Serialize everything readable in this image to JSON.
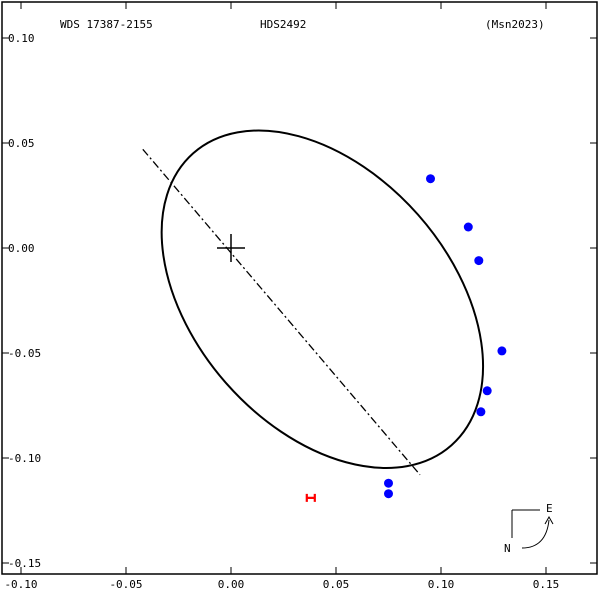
{
  "header": {
    "wds_id": "WDS 17387-2155",
    "discoverer": "HDS2492",
    "reference": "(Msn2023)"
  },
  "compass": {
    "east_label": "E",
    "north_label": "N"
  },
  "colors": {
    "axes": "#000000",
    "orbit": "#000000",
    "observations": "#0000ff",
    "hipparcos_marker": "#ff0000"
  },
  "chart_data": {
    "type": "scatter",
    "title": "",
    "xlabel": "",
    "ylabel": "",
    "xlim": [
      -0.105,
      0.175
    ],
    "ylim": [
      -0.162,
      0.113
    ],
    "x_ticks": [
      -0.1,
      -0.05,
      0.0,
      0.05,
      0.1,
      0.15
    ],
    "x_tick_labels": [
      "-0.10",
      "-0.05",
      "0.00",
      "0.05",
      "0.10",
      "0.15"
    ],
    "y_ticks": [
      0.1,
      0.05,
      0.0,
      -0.05,
      -0.1,
      -0.15
    ],
    "y_tick_labels": [
      "0.10",
      "0.05",
      "0.00",
      "-0.05",
      "-0.10",
      "-0.15"
    ],
    "grid": false,
    "primary_star": [
      0.0,
      0.0
    ],
    "orbit_ellipse": {
      "center": [
        0.0435,
        -0.0244
      ],
      "semi_axes": [
        0.0928,
        0.0608
      ],
      "rotation_deg": 48.5
    },
    "line_of_nodes": [
      [
        -0.042,
        0.047
      ],
      [
        0.09,
        -0.108
      ]
    ],
    "series": [
      {
        "marker": "filled-circle",
        "points": [
          [
            0.095,
            0.033
          ],
          [
            0.113,
            0.01
          ],
          [
            0.118,
            -0.006
          ],
          [
            0.129,
            -0.049
          ],
          [
            0.122,
            -0.068
          ],
          [
            0.119,
            -0.078
          ],
          [
            0.075,
            -0.112
          ],
          [
            0.075,
            -0.117
          ]
        ]
      },
      {
        "marker": "H",
        "points": [
          [
            0.038,
            -0.119
          ]
        ]
      }
    ]
  }
}
